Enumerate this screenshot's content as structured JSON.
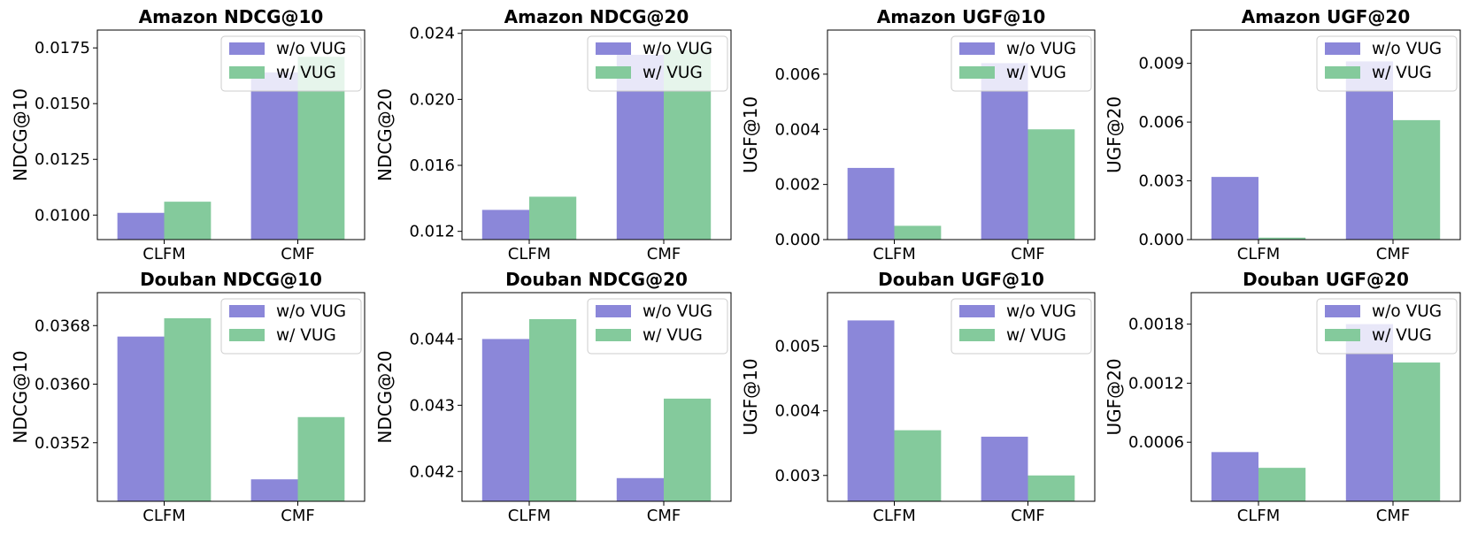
{
  "colors": {
    "without": "#8b87d9",
    "with": "#84ca9c"
  },
  "chart_data": [
    {
      "type": "bar",
      "title": "Amazon NDCG@10",
      "xlabel": "",
      "ylabel": "NDCG@10",
      "categories": [
        "CLFM",
        "CMF"
      ],
      "ylim": [
        0.0089,
        0.0183
      ],
      "ticks": [
        0.01,
        0.0125,
        0.015,
        0.0175
      ],
      "tick_labels": [
        "0.0100",
        "0.0125",
        "0.0150",
        "0.0175"
      ],
      "series": [
        {
          "name": "w/o VUG",
          "values": [
            0.0101,
            0.0164
          ]
        },
        {
          "name": "w/ VUG",
          "values": [
            0.0106,
            0.0171
          ]
        }
      ]
    },
    {
      "type": "bar",
      "title": "Amazon NDCG@20",
      "xlabel": "",
      "ylabel": "NDCG@20",
      "categories": [
        "CLFM",
        "CMF"
      ],
      "ylim": [
        0.0115,
        0.0242
      ],
      "ticks": [
        0.012,
        0.016,
        0.02,
        0.024
      ],
      "tick_labels": [
        "0.012",
        "0.016",
        "0.020",
        "0.024"
      ],
      "series": [
        {
          "name": "w/o VUG",
          "values": [
            0.0133,
            0.0227
          ]
        },
        {
          "name": "w/ VUG",
          "values": [
            0.0141,
            0.023
          ]
        }
      ]
    },
    {
      "type": "bar",
      "title": "Amazon UGF@10",
      "xlabel": "",
      "ylabel": "UGF@10",
      "categories": [
        "CLFM",
        "CMF"
      ],
      "ylim": [
        0,
        0.0076
      ],
      "ticks": [
        0.0,
        0.002,
        0.004,
        0.006
      ],
      "tick_labels": [
        "0.000",
        "0.002",
        "0.004",
        "0.006"
      ],
      "series": [
        {
          "name": "w/o VUG",
          "values": [
            0.0026,
            0.0064
          ]
        },
        {
          "name": "w/ VUG",
          "values": [
            0.0005,
            0.004
          ]
        }
      ]
    },
    {
      "type": "bar",
      "title": "Amazon UGF@20",
      "xlabel": "",
      "ylabel": "UGF@20",
      "categories": [
        "CLFM",
        "CMF"
      ],
      "ylim": [
        0,
        0.0107
      ],
      "ticks": [
        0.0,
        0.003,
        0.006,
        0.009
      ],
      "tick_labels": [
        "0.000",
        "0.003",
        "0.006",
        "0.009"
      ],
      "series": [
        {
          "name": "w/o VUG",
          "values": [
            0.0032,
            0.0091
          ]
        },
        {
          "name": "w/ VUG",
          "values": [
            0.0001,
            0.0061
          ]
        }
      ]
    },
    {
      "type": "bar",
      "title": "Douban NDCG@10",
      "xlabel": "",
      "ylabel": "NDCG@10",
      "categories": [
        "CLFM",
        "CMF"
      ],
      "ylim": [
        0.0344,
        0.03725
      ],
      "ticks": [
        0.0352,
        0.036,
        0.0368
      ],
      "tick_labels": [
        "0.0352",
        "0.0360",
        "0.0368"
      ],
      "series": [
        {
          "name": "w/o VUG",
          "values": [
            0.03665,
            0.0347
          ]
        },
        {
          "name": "w/ VUG",
          "values": [
            0.0369,
            0.03555
          ]
        }
      ]
    },
    {
      "type": "bar",
      "title": "Douban NDCG@20",
      "xlabel": "",
      "ylabel": "NDCG@20",
      "categories": [
        "CLFM",
        "CMF"
      ],
      "ylim": [
        0.04155,
        0.0447
      ],
      "ticks": [
        0.042,
        0.043,
        0.044
      ],
      "tick_labels": [
        "0.042",
        "0.043",
        "0.044"
      ],
      "series": [
        {
          "name": "w/o VUG",
          "values": [
            0.044,
            0.0419
          ]
        },
        {
          "name": "w/ VUG",
          "values": [
            0.0443,
            0.0431
          ]
        }
      ]
    },
    {
      "type": "bar",
      "title": "Douban UGF@10",
      "xlabel": "",
      "ylabel": "UGF@10",
      "categories": [
        "CLFM",
        "CMF"
      ],
      "ylim": [
        0.0026,
        0.00583
      ],
      "ticks": [
        0.003,
        0.004,
        0.005
      ],
      "tick_labels": [
        "0.003",
        "0.004",
        "0.005"
      ],
      "series": [
        {
          "name": "w/o VUG",
          "values": [
            0.0054,
            0.0036
          ]
        },
        {
          "name": "w/ VUG",
          "values": [
            0.0037,
            0.003
          ]
        }
      ]
    },
    {
      "type": "bar",
      "title": "Douban UGF@20",
      "xlabel": "",
      "ylabel": "UGF@20",
      "categories": [
        "CLFM",
        "CMF"
      ],
      "ylim": [
        0,
        0.00212
      ],
      "ticks": [
        0.0006,
        0.0012,
        0.0018
      ],
      "tick_labels": [
        "0.0006",
        "0.0012",
        "0.0018"
      ],
      "series": [
        {
          "name": "w/o VUG",
          "values": [
            0.0005,
            0.0018
          ]
        },
        {
          "name": "w/ VUG",
          "values": [
            0.00034,
            0.00141
          ]
        }
      ]
    }
  ]
}
